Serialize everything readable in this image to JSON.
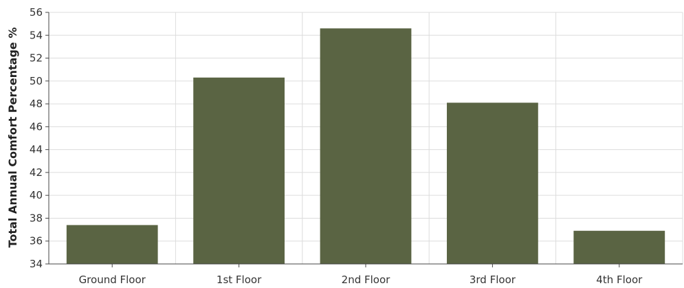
{
  "colors": {
    "bar": "#5a6443",
    "grid": "#dcdcdc",
    "axis": "#444444"
  },
  "chart_data": {
    "type": "bar",
    "categories": [
      "Ground Floor",
      "1st Floor",
      "2nd Floor",
      "3rd Floor",
      "4th Floor"
    ],
    "values": [
      37.4,
      50.3,
      54.6,
      48.1,
      36.9
    ],
    "title": "",
    "xlabel": "",
    "ylabel": "Total Annual Comfort Percentage %",
    "ylim": [
      34,
      56
    ],
    "yticks": [
      34,
      36,
      38,
      40,
      42,
      44,
      46,
      48,
      50,
      52,
      54,
      56
    ],
    "grid": true,
    "legend": "none"
  }
}
